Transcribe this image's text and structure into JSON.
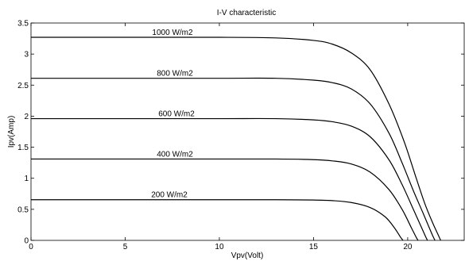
{
  "chart_data": {
    "type": "line",
    "title": "I-V characteristic",
    "xlabel": "Vpv(Volt)",
    "ylabel": "Ipv(Amp)",
    "xlim": [
      0,
      23
    ],
    "ylim": [
      0,
      3.5
    ],
    "xticks": [
      0,
      5,
      10,
      15,
      20
    ],
    "yticks": [
      0,
      0.5,
      1,
      1.5,
      2,
      2.5,
      3,
      3.5
    ],
    "xtick_labels": [
      "0",
      "5",
      "10",
      "15",
      "20"
    ],
    "ytick_labels": [
      "0",
      "0.5",
      "1",
      "1.5",
      "2",
      "2.5",
      "3",
      "3.5"
    ],
    "grid": false,
    "series": [
      {
        "name": "1000 W/m2",
        "x": [
          0,
          5,
          10,
          13,
          15,
          16,
          17,
          18,
          19,
          19.8,
          20.4,
          20.9,
          21.3,
          21.6,
          21.75
        ],
        "y": [
          3.27,
          3.27,
          3.27,
          3.26,
          3.22,
          3.16,
          3.02,
          2.75,
          2.2,
          1.6,
          1.05,
          0.6,
          0.3,
          0.1,
          0
        ]
      },
      {
        "name": "800 W/m2",
        "x": [
          0,
          5,
          10,
          13,
          15,
          16,
          17,
          18,
          19,
          19.7,
          20.3,
          20.8,
          21.15,
          21.35,
          21.45
        ],
        "y": [
          2.61,
          2.61,
          2.61,
          2.61,
          2.58,
          2.54,
          2.44,
          2.2,
          1.73,
          1.25,
          0.8,
          0.45,
          0.2,
          0.06,
          0
        ]
      },
      {
        "name": "600 W/m2",
        "x": [
          0,
          5,
          10,
          13,
          15,
          16,
          17,
          18,
          19,
          19.7,
          20.3,
          20.7,
          20.95,
          21.05
        ],
        "y": [
          1.96,
          1.96,
          1.96,
          1.96,
          1.94,
          1.91,
          1.84,
          1.67,
          1.3,
          0.9,
          0.5,
          0.23,
          0.06,
          0
        ]
      },
      {
        "name": "400 W/m2",
        "x": [
          0,
          5,
          10,
          13,
          15,
          16,
          17,
          18,
          19,
          19.7,
          20.2,
          20.45,
          20.55
        ],
        "y": [
          1.31,
          1.31,
          1.31,
          1.31,
          1.3,
          1.28,
          1.23,
          1.1,
          0.82,
          0.5,
          0.2,
          0.05,
          0
        ]
      },
      {
        "name": "200 W/m2",
        "x": [
          0,
          5,
          10,
          13,
          15,
          16,
          17,
          18,
          18.8,
          19.3,
          19.6,
          19.75
        ],
        "y": [
          0.655,
          0.655,
          0.655,
          0.655,
          0.65,
          0.64,
          0.61,
          0.53,
          0.38,
          0.2,
          0.06,
          0
        ]
      }
    ]
  }
}
